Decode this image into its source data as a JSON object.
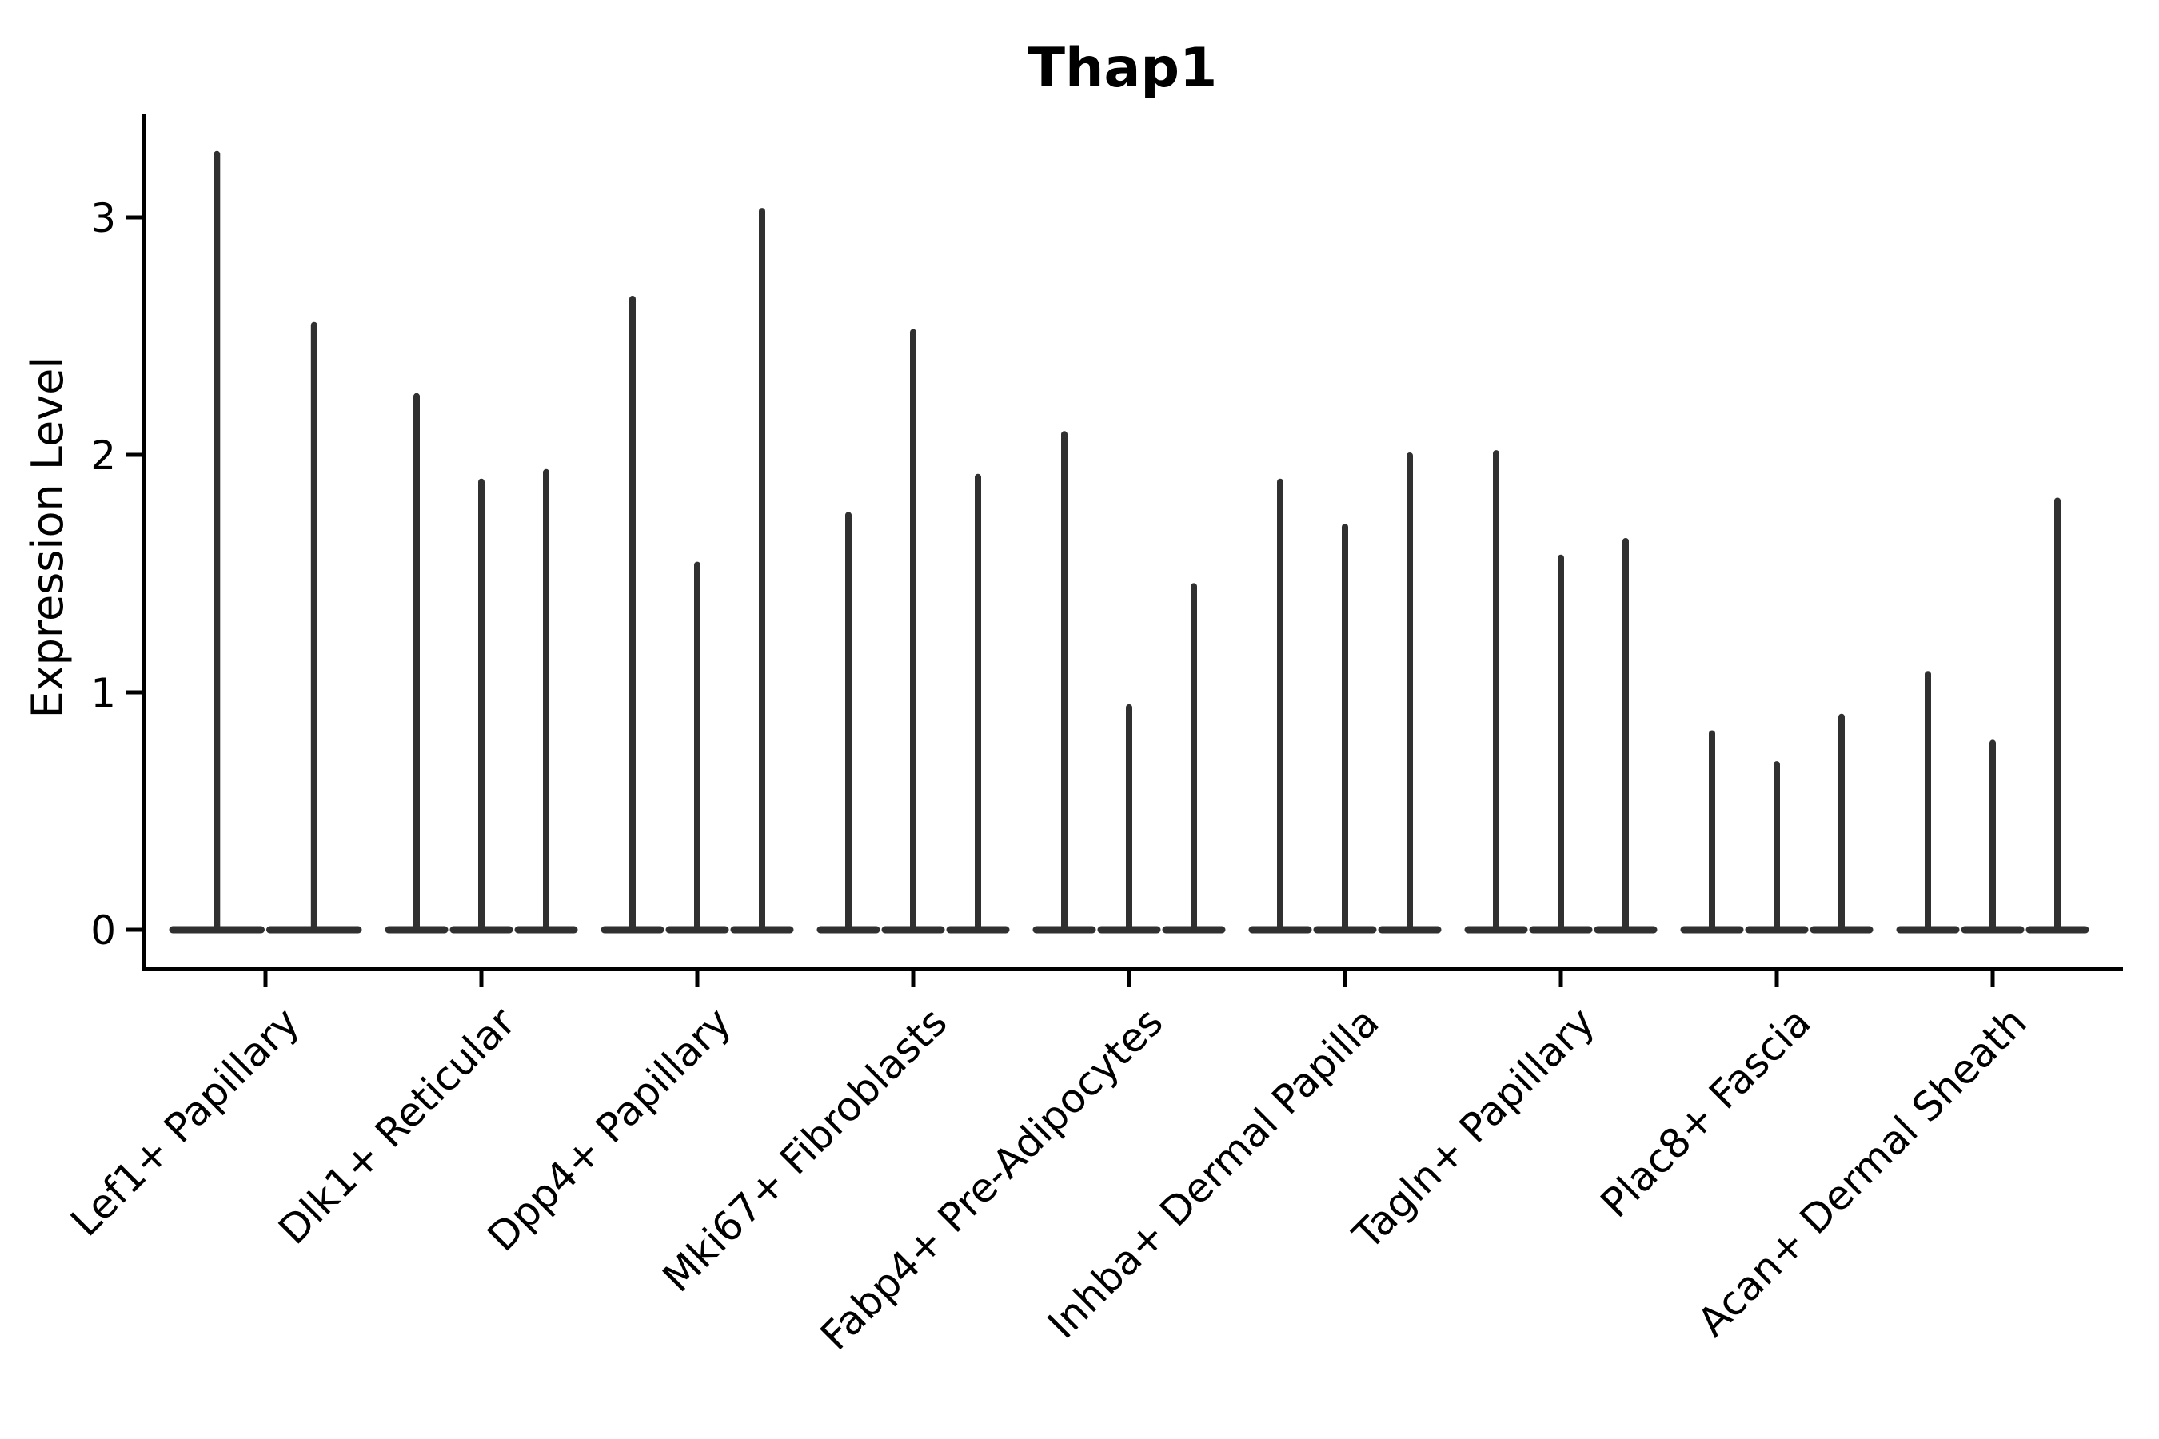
{
  "chart_data": {
    "type": "violin",
    "title": "Thap1",
    "ylabel": "Expression Level",
    "xlabel": "",
    "ylim": [
      -0.16,
      3.44
    ],
    "yticks": [
      0,
      1,
      2,
      3
    ],
    "grid": false,
    "legend": false,
    "orientation": "vertical",
    "note": "Seurat-style stacked violin plot: each cell-type group contains thin needle violins massed at expression 0 with a narrow spike rising to the maximum expression value",
    "groups": [
      {
        "label": "Lef1+ Papillary",
        "violin_max_values": [
          3.28,
          2.56
        ]
      },
      {
        "label": "Dlk1+ Reticular",
        "violin_max_values": [
          2.26,
          1.9,
          1.94
        ]
      },
      {
        "label": "Dpp4+ Papillary",
        "violin_max_values": [
          2.67,
          1.55,
          3.04
        ]
      },
      {
        "label": "Mki67+ Fibroblasts",
        "violin_max_values": [
          1.76,
          2.53,
          1.92
        ]
      },
      {
        "label": "Fabp4+ Pre-Adipocytes",
        "violin_max_values": [
          2.1,
          0.95,
          1.46
        ]
      },
      {
        "label": "Inhba+ Dermal Papilla",
        "violin_max_values": [
          1.9,
          1.71,
          2.01
        ]
      },
      {
        "label": "Tagln+ Papillary",
        "violin_max_values": [
          2.02,
          1.58,
          1.65
        ]
      },
      {
        "label": "Plac8+ Fascia",
        "violin_max_values": [
          0.84,
          0.71,
          0.91
        ]
      },
      {
        "label": "Acan+ Dermal Sheath",
        "violin_max_values": [
          1.09,
          0.8,
          1.82
        ]
      }
    ]
  },
  "colors": {
    "violin": "#303030",
    "axis": "#000000",
    "text": "#000000",
    "background": "#ffffff"
  }
}
